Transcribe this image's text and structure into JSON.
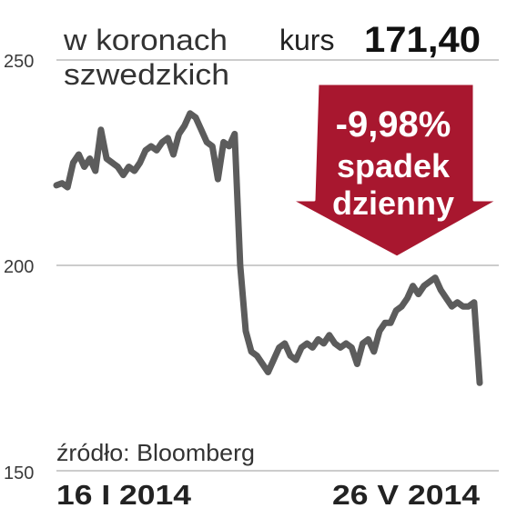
{
  "chart_data": {
    "type": "line",
    "unit_label_line1": "w koronach",
    "unit_label_line2": "szwedzkich",
    "price_label": "kurs",
    "price_value": "171,40",
    "callout": {
      "line1": "-9,98%",
      "line2": "spadek",
      "line3": "dzienny",
      "color": "#a8172f"
    },
    "source": "źródło: Bloomberg",
    "x_start_label": "16 I 2014",
    "x_end_label": "26 V 2014",
    "yticks": [
      "250",
      "200",
      "150"
    ],
    "yticks_values": [
      250,
      200,
      150
    ],
    "ylim": [
      150,
      250
    ],
    "grid": true,
    "line_color": "#5c5c5c",
    "series": [
      {
        "values": [
          219.5,
          220,
          219,
          225,
          227,
          224,
          226,
          223,
          233,
          226,
          225,
          224,
          222,
          224,
          223,
          225,
          228,
          229,
          228,
          230,
          231,
          227,
          232,
          234,
          237,
          236,
          233,
          230,
          229,
          221,
          230,
          229,
          232,
          200,
          184,
          179,
          178,
          176,
          174,
          177,
          180,
          181,
          178,
          177,
          180,
          181,
          180,
          182,
          181,
          183,
          181,
          180,
          181,
          180,
          176,
          181,
          182,
          179,
          184,
          186,
          186,
          189,
          190,
          192,
          195,
          193,
          195,
          196,
          197,
          194,
          192,
          190,
          191,
          190,
          190,
          191,
          171.4
        ]
      }
    ]
  }
}
